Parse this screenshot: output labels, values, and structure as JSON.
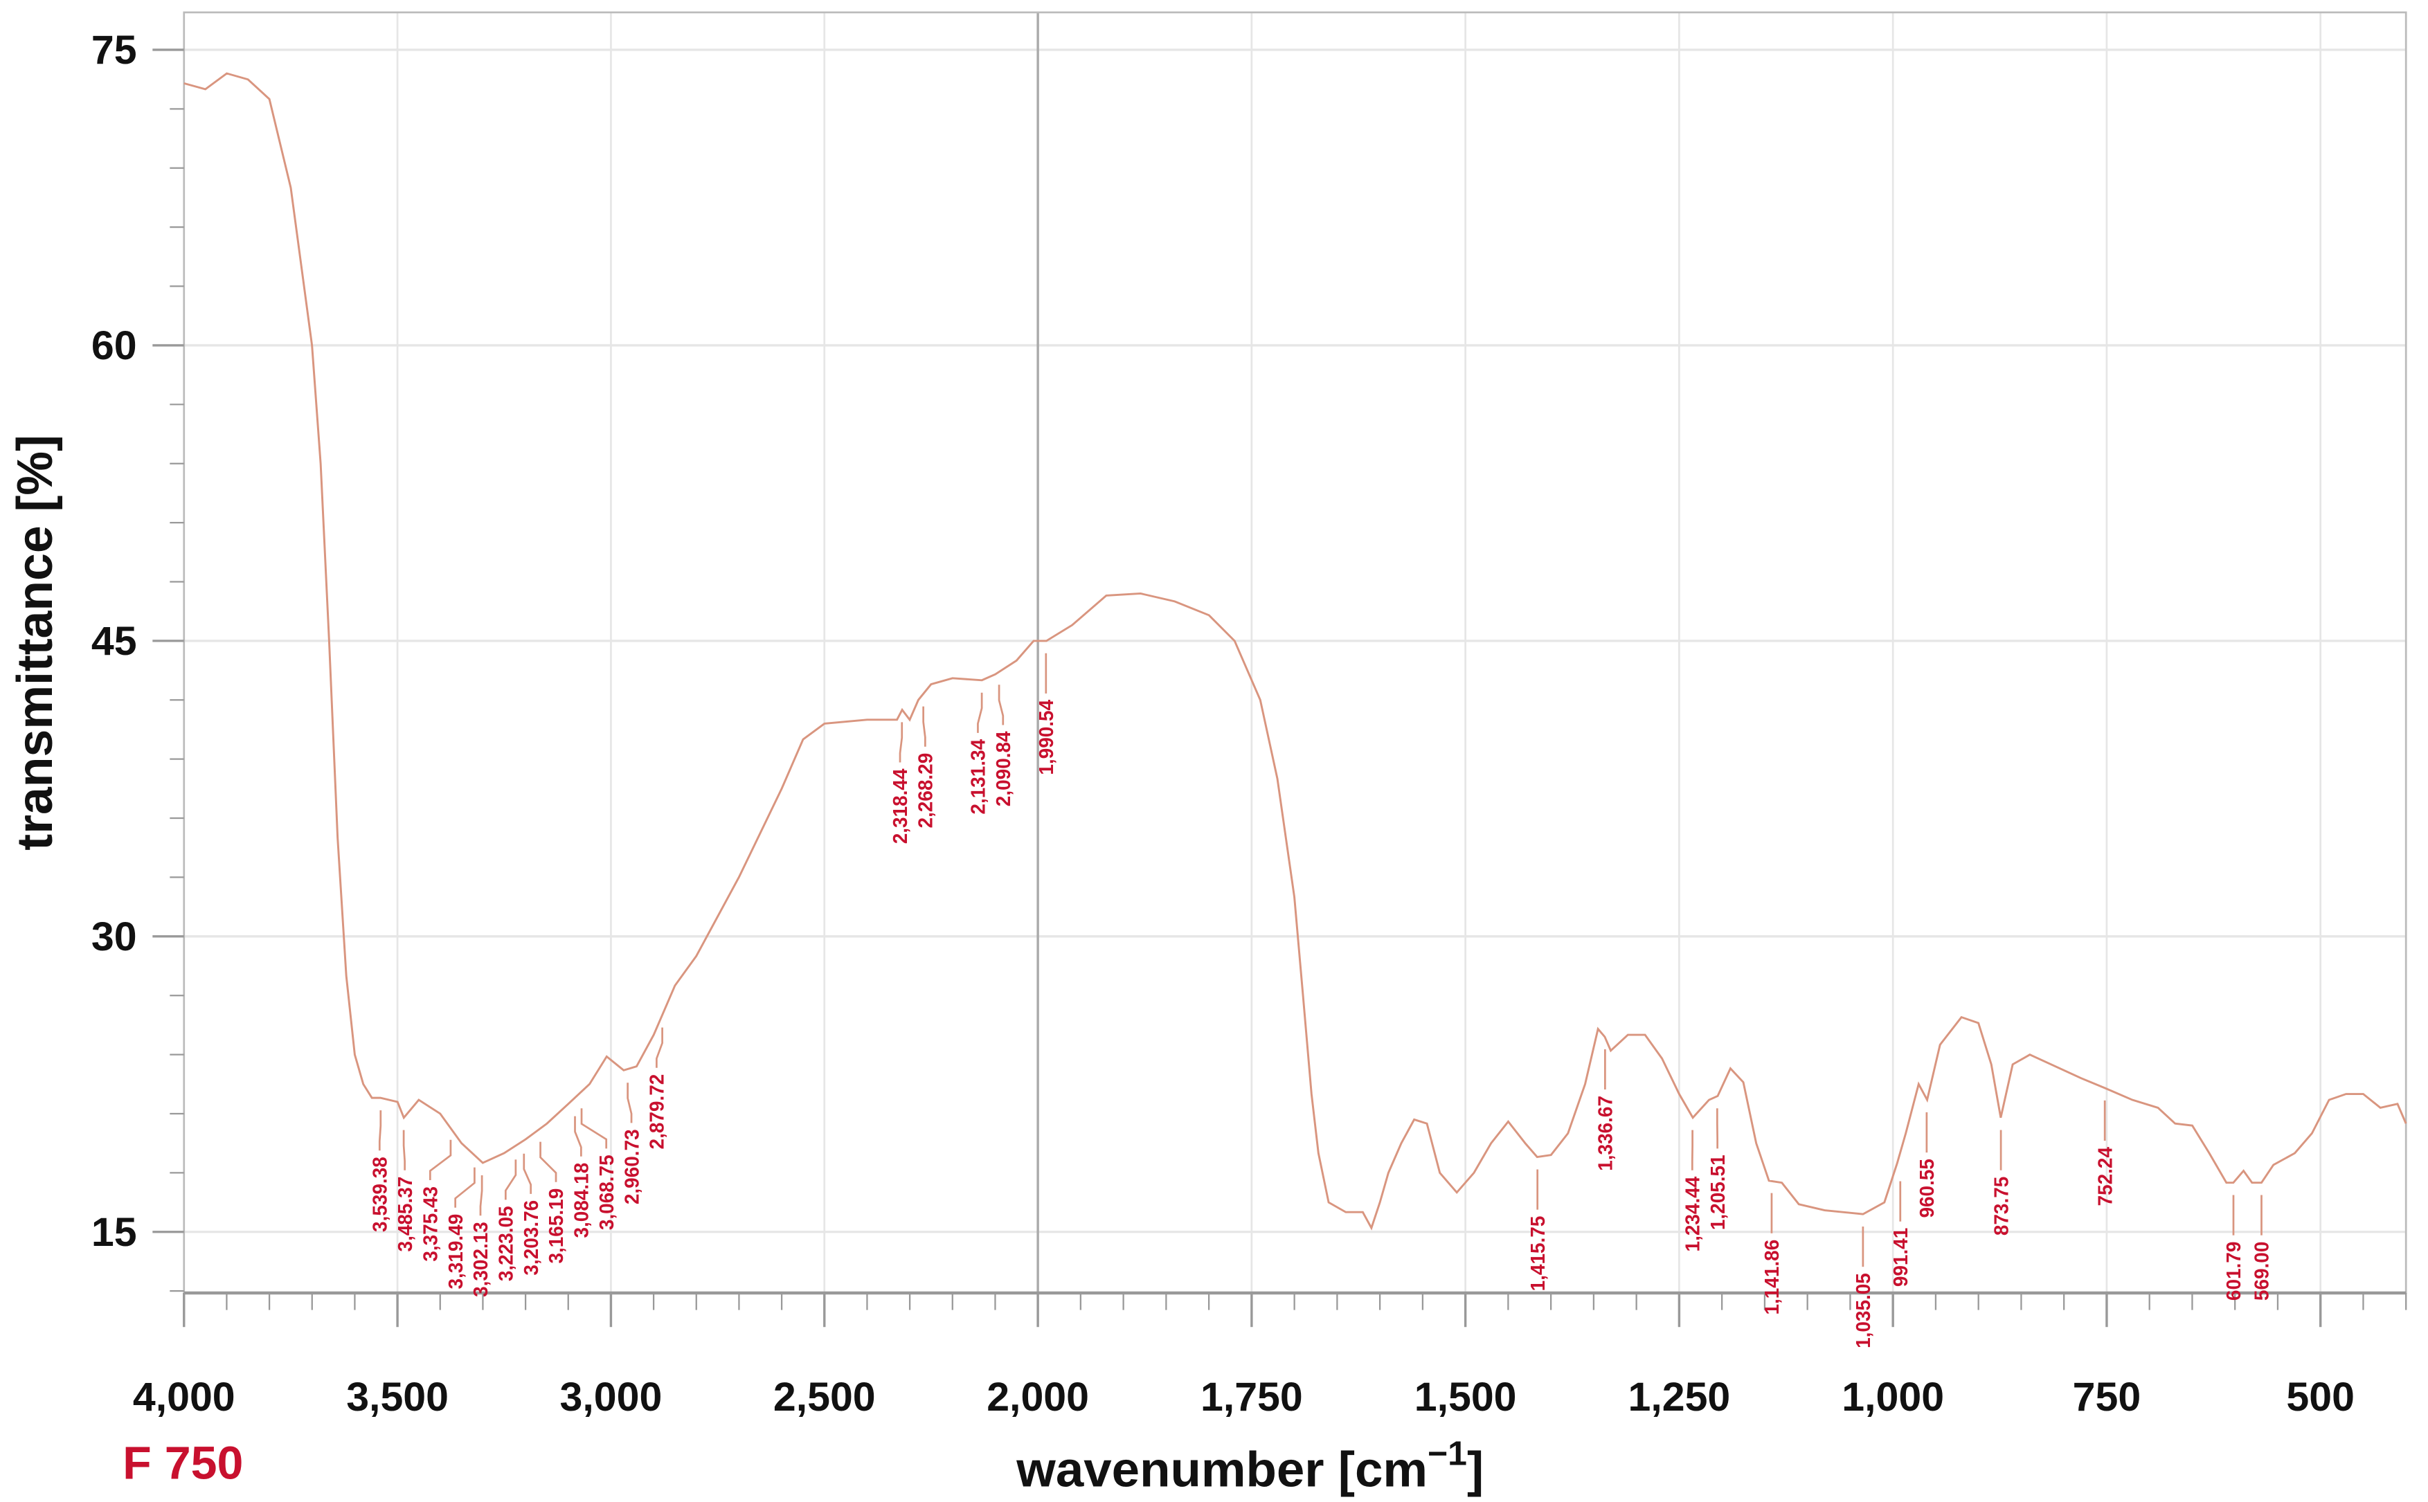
{
  "chart_data": {
    "type": "line",
    "title": "",
    "sample_label": "F 750",
    "xlabel": "wavenumber [cm",
    "xlabel_sup": "−1",
    "xlabel_end": "]",
    "ylabel": "transmittance [%]",
    "xlim": [
      4000,
      400
    ],
    "x_scale_break": 2000,
    "ylim": [
      11.9,
      76.9
    ],
    "grid": true,
    "x_ticks": [
      4000,
      3500,
      3000,
      2500,
      2000,
      1750,
      1500,
      1250,
      1000,
      750,
      500
    ],
    "x_tick_labels": [
      "4,000",
      "3,500",
      "3,000",
      "2,500",
      "2,000",
      "1,750",
      "1,500",
      "1,250",
      "1,000",
      "750",
      "500"
    ],
    "y_ticks": [
      15,
      30,
      45,
      60,
      75
    ],
    "y_tick_labels": [
      "15",
      "30",
      "45",
      "60",
      "75"
    ],
    "colors": {
      "line": "#d9957f",
      "peak_labels": "#c8102e",
      "sample_label": "#c8102e"
    },
    "series": [
      {
        "name": "F 750",
        "x": [
          4000,
          3950,
          3900,
          3850,
          3800,
          3750,
          3700,
          3680,
          3660,
          3640,
          3620,
          3600,
          3580,
          3560,
          3540,
          3500,
          3485,
          3450,
          3400,
          3350,
          3300,
          3250,
          3200,
          3150,
          3100,
          3050,
          3010,
          2970,
          2940,
          2900,
          2880,
          2850,
          2800,
          2700,
          2600,
          2550,
          2500,
          2400,
          2330,
          2318,
          2300,
          2280,
          2250,
          2200,
          2131,
          2100,
          2050,
          2010,
          1990,
          1960,
          1920,
          1880,
          1840,
          1800,
          1770,
          1740,
          1720,
          1700,
          1690,
          1680,
          1672,
          1660,
          1640,
          1620,
          1610,
          1600,
          1590,
          1575,
          1560,
          1545,
          1530,
          1510,
          1490,
          1470,
          1450,
          1430,
          1416,
          1400,
          1380,
          1360,
          1345,
          1337,
          1330,
          1310,
          1290,
          1270,
          1250,
          1234,
          1215,
          1205,
          1190,
          1175,
          1160,
          1145,
          1130,
          1110,
          1080,
          1035,
          1010,
          995,
          985,
          970,
          960,
          945,
          920,
          900,
          885,
          874,
          860,
          840,
          810,
          780,
          752,
          720,
          690,
          670,
          650,
          630,
          610,
          602,
          590,
          580,
          569,
          555,
          530,
          510,
          490,
          470,
          450,
          430,
          410,
          400
        ],
        "y": [
          73.3,
          73,
          73.8,
          73.5,
          72.5,
          68,
          60,
          54,
          45,
          35,
          28,
          24,
          22.5,
          21.8,
          21.8,
          21.6,
          20.8,
          21.7,
          21,
          19.5,
          18.5,
          19,
          19.7,
          20.5,
          21.5,
          22.5,
          23.9,
          23.2,
          23.4,
          25,
          26,
          27.5,
          29,
          33,
          37.5,
          40,
          40.8,
          41,
          41,
          41.5,
          41,
          42,
          42.8,
          43.1,
          43,
          43.3,
          44,
          45,
          45,
          45.8,
          47.3,
          47.4,
          47,
          46.3,
          45,
          42,
          38,
          32,
          27,
          22,
          19,
          16.5,
          16,
          16,
          15.2,
          16.5,
          18,
          19.5,
          20.7,
          20.5,
          18,
          17,
          18,
          19.5,
          20.6,
          19.5,
          18.8,
          18.9,
          20,
          22.5,
          25.3,
          24.9,
          24.2,
          25,
          25,
          23.8,
          22,
          20.8,
          21.7,
          21.9,
          23.3,
          22.6,
          19.5,
          17.6,
          17.5,
          16.4,
          16.1,
          15.9,
          16.5,
          18.5,
          20,
          22.5,
          21.7,
          24.5,
          25.9,
          25.6,
          23.5,
          20.8,
          23.5,
          24,
          23.4,
          22.8,
          22.3,
          21.7,
          21.3,
          20.5,
          20.4,
          19,
          17.5,
          17.5,
          18.1,
          17.5,
          17.5,
          18.4,
          19,
          20,
          21.7,
          22,
          22,
          21.3,
          21.5,
          20.5
        ]
      }
    ],
    "peaks": [
      {
        "x": 3539.38,
        "label": "3,539.38",
        "y": 21.8
      },
      {
        "x": 3485.37,
        "label": "3,485.37",
        "y": 20.8
      },
      {
        "x": 3375.43,
        "label": "3,375.43",
        "y": 20.3
      },
      {
        "x": 3319.49,
        "label": "3,319.49",
        "y": 18.9
      },
      {
        "x": 3302.13,
        "label": "3,302.13",
        "y": 18.5
      },
      {
        "x": 3223.05,
        "label": "3,223.05",
        "y": 19.3
      },
      {
        "x": 3203.76,
        "label": "3,203.76",
        "y": 19.6
      },
      {
        "x": 3165.19,
        "label": "3,165.19",
        "y": 20.2
      },
      {
        "x": 3084.18,
        "label": "3,084.18",
        "y": 21.5
      },
      {
        "x": 3068.75,
        "label": "3,068.75",
        "y": 21.9
      },
      {
        "x": 2960.73,
        "label": "2,960.73",
        "y": 23.2
      },
      {
        "x": 2879.72,
        "label": "2,879.72",
        "y": 26
      },
      {
        "x": 2318.44,
        "label": "2,318.44",
        "y": 41.5
      },
      {
        "x": 2268.29,
        "label": "2,268.29",
        "y": 42.3
      },
      {
        "x": 2131.34,
        "label": "2,131.34",
        "y": 43
      },
      {
        "x": 2090.84,
        "label": "2,090.84",
        "y": 43.4
      },
      {
        "x": 1990.54,
        "label": "1,990.54",
        "y": 45
      },
      {
        "x": 1415.75,
        "label": "1,415.75",
        "y": 18.8
      },
      {
        "x": 1336.67,
        "label": "1,336.67",
        "y": 24.9
      },
      {
        "x": 1234.44,
        "label": "1,234.44",
        "y": 20.8
      },
      {
        "x": 1205.51,
        "label": "1,205.51",
        "y": 21.9
      },
      {
        "x": 1141.86,
        "label": "1,141.86",
        "y": 17.6
      },
      {
        "x": 1035.05,
        "label": "1,035.05",
        "y": 15.9
      },
      {
        "x": 991.41,
        "label": "991.41",
        "y": 18.2
      },
      {
        "x": 960.55,
        "label": "960.55",
        "y": 21.7
      },
      {
        "x": 873.75,
        "label": "873.75",
        "y": 20.8
      },
      {
        "x": 752.24,
        "label": "752.24",
        "y": 22.3
      },
      {
        "x": 601.79,
        "label": "601.79",
        "y": 17.5
      },
      {
        "x": 569.0,
        "label": "569.00",
        "y": 17.5
      }
    ]
  }
}
